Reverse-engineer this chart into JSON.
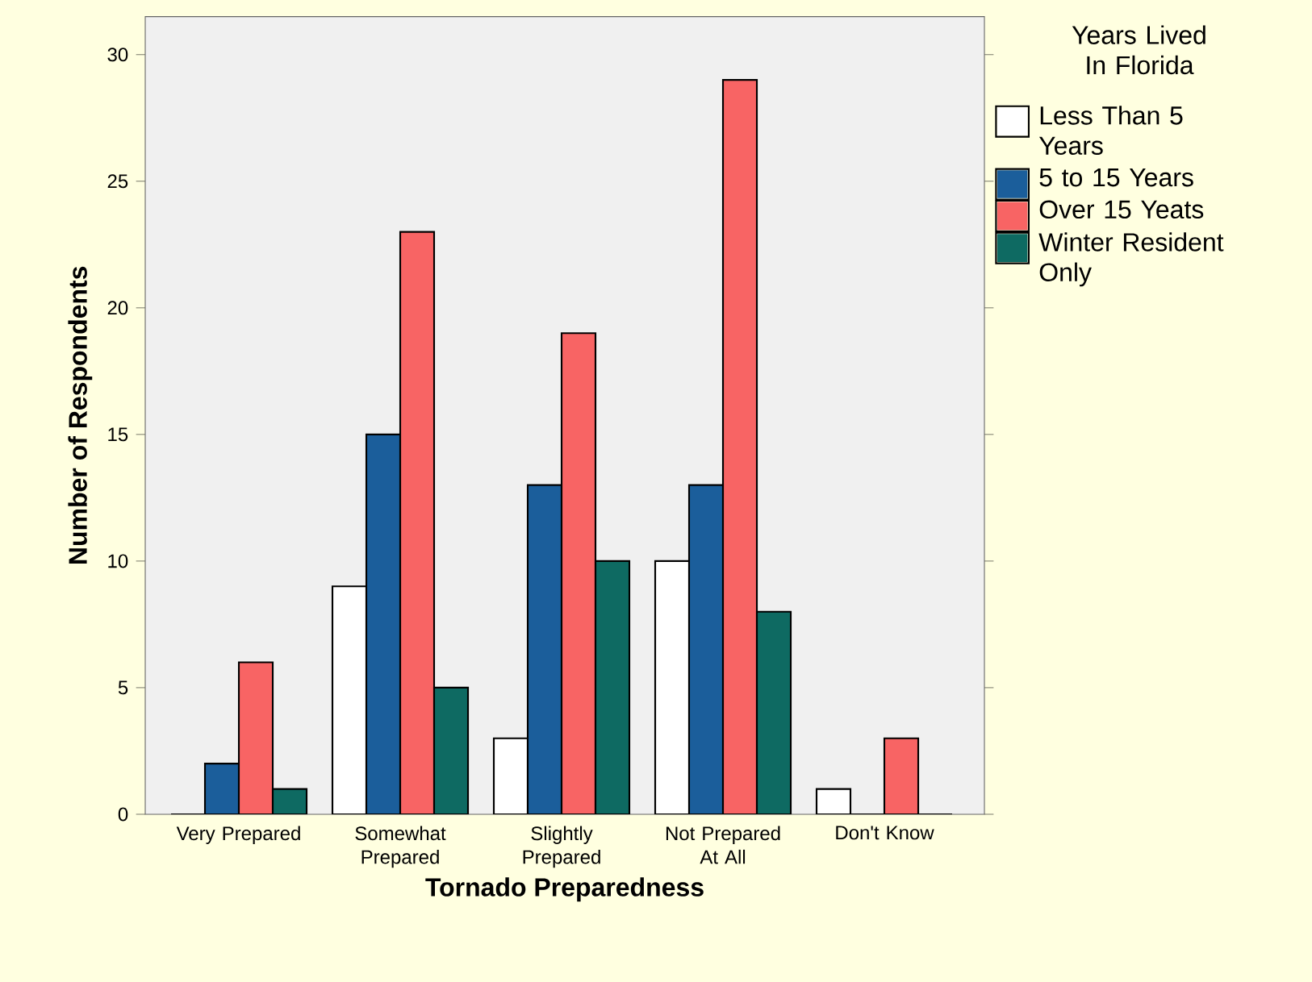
{
  "chart_data": {
    "type": "bar",
    "xlabel": "Tornado Preparedness",
    "ylabel": "Number of Respondents",
    "legend_title": "Years Lived In Florida",
    "categories": [
      "Very Prepared",
      "Somewhat Prepared",
      "Slightly Prepared",
      "Not Prepared At All",
      "Don't Know"
    ],
    "series": [
      {
        "name": "Less Than 5 Years",
        "color": "#ffffff",
        "values": [
          0,
          9,
          3,
          10,
          1
        ]
      },
      {
        "name": "5 to 15 Years",
        "color": "#1b5e9b",
        "values": [
          2,
          15,
          13,
          13,
          0
        ]
      },
      {
        "name": "Over 15 Yeats",
        "color": "#f86464",
        "values": [
          6,
          23,
          19,
          29,
          3
        ]
      },
      {
        "name": "Winter Resident Only",
        "color": "#0e6a62",
        "values": [
          1,
          5,
          10,
          8,
          0
        ]
      }
    ],
    "ylim": [
      0,
      31.5
    ],
    "yticks": [
      0,
      5,
      10,
      15,
      20,
      25,
      30
    ],
    "grid": false,
    "legend": "right"
  }
}
